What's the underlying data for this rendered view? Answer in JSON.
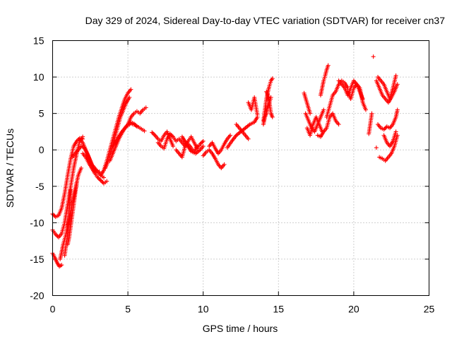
{
  "chart_data": {
    "type": "scatter",
    "title": "Day 329 of 2024, Sidereal Day-to-day VTEC variation (SDTVAR) for receiver cn37",
    "xlabel": "GPS time / hours",
    "ylabel": "SDTVAR / TECUs",
    "xlim": [
      0,
      25
    ],
    "ylim": [
      -20,
      15
    ],
    "xticks": [
      0,
      5,
      10,
      15,
      20,
      25
    ],
    "yticks": [
      -20,
      -15,
      -10,
      -5,
      0,
      5,
      10,
      15
    ],
    "grid": true,
    "marker": "plus",
    "color": "#ff0000",
    "series": [
      {
        "name": "SDTVAR",
        "tracks": [
          {
            "x": [
              0.0,
              0.15,
              0.3,
              0.45,
              0.6
            ],
            "y": [
              -14.2,
              -14.8,
              -15.5,
              -16.0,
              -15.8
            ]
          },
          {
            "x": [
              0.0,
              0.2,
              0.4,
              0.6,
              0.8,
              1.0,
              1.2,
              1.4,
              1.6,
              1.8,
              2.0
            ],
            "y": [
              -11.0,
              -11.6,
              -12.0,
              -11.5,
              -10.0,
              -7.5,
              -5.0,
              -2.5,
              -0.5,
              1.2,
              1.8
            ]
          },
          {
            "x": [
              0.0,
              0.2,
              0.4,
              0.6,
              0.8,
              1.0,
              1.2,
              1.4,
              1.6,
              1.8,
              2.0
            ],
            "y": [
              -8.8,
              -9.2,
              -9.0,
              -8.0,
              -6.0,
              -3.5,
              -1.2,
              0.5,
              1.2,
              1.6,
              1.5
            ]
          },
          {
            "x": [
              0.5,
              0.7,
              0.9,
              1.1,
              1.3,
              1.5,
              1.7,
              1.9
            ],
            "y": [
              -15.0,
              -13.0,
              -11.5,
              -9.5,
              -7.5,
              -5.5,
              -3.5,
              -2.5
            ]
          },
          {
            "x": [
              0.8,
              0.9,
              1.0,
              1.05,
              1.1,
              1.15,
              1.2
            ],
            "y": [
              -14.5,
              -13.0,
              -11.5,
              -10.0,
              -8.5,
              -7.0,
              -5.5
            ]
          },
          {
            "x": [
              1.0,
              1.1,
              1.2,
              1.3,
              1.4,
              1.5,
              1.6
            ],
            "y": [
              -13.0,
              -12.0,
              -10.5,
              -9.0,
              -7.5,
              -6.0,
              -4.5
            ]
          },
          {
            "x": [
              1.3,
              1.5,
              1.7,
              1.9,
              2.1,
              2.3,
              2.5,
              2.7,
              2.9,
              3.1
            ],
            "y": [
              -1.0,
              -0.5,
              0.0,
              0.5,
              0.3,
              -0.5,
              -1.5,
              -2.5,
              -3.0,
              -3.0
            ]
          },
          {
            "x": [
              1.8,
              2.0,
              2.2,
              2.4,
              2.6,
              2.8,
              3.0,
              3.2,
              3.4
            ],
            "y": [
              1.5,
              1.0,
              0.0,
              -1.0,
              -2.0,
              -2.5,
              -3.0,
              -3.5,
              -3.8
            ]
          },
          {
            "x": [
              2.0,
              2.2,
              2.4,
              2.6,
              2.8,
              3.0,
              3.2,
              3.4,
              3.6
            ],
            "y": [
              -0.5,
              -1.0,
              -1.8,
              -2.5,
              -3.2,
              -3.8,
              -4.2,
              -4.6,
              -4.3
            ]
          },
          {
            "x": [
              3.2,
              3.4,
              3.6,
              3.8,
              4.0,
              4.2,
              4.4,
              4.6,
              4.8,
              5.0,
              5.2
            ],
            "y": [
              -3.5,
              -2.8,
              -1.5,
              0.0,
              1.5,
              3.0,
              4.5,
              5.8,
              7.0,
              7.8,
              8.3
            ]
          },
          {
            "x": [
              3.5,
              3.7,
              3.9,
              4.1,
              4.3,
              4.5,
              4.7,
              4.9,
              5.1
            ],
            "y": [
              -2.5,
              -1.5,
              0.0,
              1.5,
              3.0,
              4.5,
              5.5,
              6.5,
              7.2
            ]
          },
          {
            "x": [
              3.8,
              4.0,
              4.2,
              4.4,
              4.6,
              4.8,
              5.0,
              5.2,
              5.4,
              5.6
            ],
            "y": [
              -1.5,
              -0.5,
              0.5,
              1.5,
              2.3,
              3.0,
              3.5,
              3.8,
              3.6,
              3.2
            ]
          },
          {
            "x": [
              4.0,
              4.3,
              4.6,
              4.9,
              5.2,
              5.5,
              5.8,
              6.1
            ],
            "y": [
              0.5,
              1.5,
              2.5,
              3.2,
              3.6,
              3.4,
              3.0,
              2.6
            ]
          },
          {
            "x": [
              5.0,
              5.2,
              5.4,
              5.6,
              5.8,
              6.0,
              6.2
            ],
            "y": [
              3.5,
              4.5,
              5.0,
              5.3,
              5.0,
              5.5,
              5.8
            ]
          },
          {
            "x": [
              6.6,
              6.8,
              7.0,
              7.2,
              7.4,
              7.6,
              7.8,
              8.0
            ],
            "y": [
              2.4,
              2.0,
              1.5,
              1.2,
              2.0,
              2.5,
              1.5,
              0.5
            ]
          },
          {
            "x": [
              7.0,
              7.2,
              7.4,
              7.6,
              7.8,
              8.0,
              8.2,
              8.4,
              8.6,
              8.8,
              9.0,
              9.2,
              9.4,
              9.6
            ],
            "y": [
              1.0,
              0.5,
              0.2,
              1.5,
              2.2,
              1.8,
              1.2,
              1.5,
              1.0,
              0.5,
              0.8,
              0.3,
              -0.3,
              0.5
            ]
          },
          {
            "x": [
              8.2,
              8.4,
              8.6,
              8.8,
              9.0,
              9.2,
              9.4,
              9.6,
              9.8,
              10.0
            ],
            "y": [
              0.0,
              -0.5,
              -1.0,
              0.5,
              1.2,
              1.8,
              1.0,
              0.2,
              0.8,
              1.2
            ]
          },
          {
            "x": [
              8.6,
              8.9,
              9.2,
              9.5,
              9.8,
              10.0
            ],
            "y": [
              1.8,
              0.8,
              -0.2,
              -0.5,
              0.0,
              0.5
            ]
          },
          {
            "x": [
              10.0,
              10.2,
              10.4,
              10.6,
              10.8,
              11.0,
              11.2,
              11.4
            ],
            "y": [
              -0.8,
              -0.3,
              0.0,
              -0.5,
              -1.2,
              -2.0,
              -2.5,
              -2.0
            ]
          },
          {
            "x": [
              10.4,
              10.6,
              10.8,
              11.0,
              11.2,
              11.4,
              11.6,
              11.8
            ],
            "y": [
              0.5,
              1.0,
              0.2,
              -0.5,
              0.0,
              0.8,
              1.5,
              2.0
            ]
          },
          {
            "x": [
              11.6,
              11.9,
              12.2,
              12.5,
              12.8,
              13.1,
              13.4,
              13.6
            ],
            "y": [
              0.3,
              1.2,
              2.0,
              2.5,
              3.0,
              3.5,
              3.8,
              4.5
            ]
          },
          {
            "x": [
              12.2,
              12.4,
              12.6,
              12.8,
              13.0
            ],
            "y": [
              3.5,
              3.0,
              2.5,
              2.0,
              1.5
            ]
          },
          {
            "x": [
              13.0,
              13.2,
              13.4,
              13.6
            ],
            "y": [
              6.5,
              5.5,
              7.2,
              4.8
            ]
          },
          {
            "x": [
              14.0,
              14.1,
              14.2,
              14.3,
              14.4,
              14.5,
              14.6
            ],
            "y": [
              4.0,
              5.5,
              7.0,
              8.0,
              8.8,
              9.5,
              9.8
            ]
          },
          {
            "x": [
              14.0,
              14.1,
              14.2,
              14.3,
              14.4,
              14.5
            ],
            "y": [
              3.5,
              4.5,
              5.0,
              6.0,
              6.5,
              7.2
            ]
          },
          {
            "x": [
              14.2,
              14.3,
              14.4,
              14.5,
              14.6
            ],
            "y": [
              8.0,
              7.5,
              6.5,
              5.0,
              4.5
            ]
          },
          {
            "x": [
              16.8,
              17.0,
              17.2,
              17.4,
              17.6,
              17.8,
              18.0
            ],
            "y": [
              5.0,
              4.0,
              3.0,
              2.5,
              3.5,
              4.5,
              5.5
            ]
          },
          {
            "x": [
              16.9,
              17.1,
              17.3,
              17.5,
              17.7,
              17.9
            ],
            "y": [
              3.0,
              2.0,
              3.5,
              4.5,
              3.5,
              2.5
            ]
          },
          {
            "x": [
              17.8,
              17.9,
              18.0,
              18.1,
              18.2,
              18.3
            ],
            "y": [
              7.5,
              8.5,
              9.5,
              10.2,
              11.0,
              11.6
            ]
          },
          {
            "x": [
              17.6,
              17.8,
              18.0,
              18.2,
              18.4,
              18.6,
              18.8,
              19.0
            ],
            "y": [
              2.0,
              1.8,
              2.5,
              3.0,
              4.5,
              5.0,
              4.0,
              3.5
            ]
          },
          {
            "x": [
              18.2,
              18.4,
              18.6,
              18.8,
              19.0,
              19.2,
              19.4,
              19.6
            ],
            "y": [
              4.5,
              6.0,
              7.5,
              8.0,
              9.0,
              9.5,
              9.2,
              8.5
            ]
          },
          {
            "x": [
              19.0,
              19.2,
              19.4,
              19.6,
              19.8,
              20.0,
              20.2,
              20.4,
              20.6
            ],
            "y": [
              9.5,
              9.0,
              8.5,
              7.5,
              8.5,
              9.5,
              9.0,
              8.0,
              7.0
            ]
          },
          {
            "x": [
              19.6,
              19.8,
              20.0,
              20.2,
              20.4,
              20.6,
              20.8
            ],
            "y": [
              8.0,
              7.0,
              8.5,
              9.0,
              8.5,
              6.5,
              5.5
            ]
          },
          {
            "x": [
              16.7,
              17.1,
              21.0,
              21.2,
              21.3,
              21.5
            ],
            "y": [
              7.8,
              5.0,
              2.2,
              5.0,
              12.8,
              0.3
            ]
          },
          {
            "x": [
              21.5,
              21.7,
              21.9,
              22.1,
              22.3,
              22.5,
              22.7,
              22.9
            ],
            "y": [
              9.5,
              8.5,
              7.5,
              7.0,
              6.5,
              7.2,
              8.0,
              9.0
            ]
          },
          {
            "x": [
              21.6,
              21.8,
              22.0,
              22.2,
              22.4,
              22.6,
              22.8
            ],
            "y": [
              10.0,
              9.5,
              9.0,
              8.0,
              7.0,
              8.5,
              10.2
            ]
          },
          {
            "x": [
              21.6,
              21.8,
              22.0,
              22.2,
              22.4,
              22.6,
              22.8,
              22.9
            ],
            "y": [
              3.5,
              3.0,
              2.8,
              3.2,
              3.0,
              3.5,
              4.5,
              5.5
            ]
          },
          {
            "x": [
              21.7,
              21.9,
              22.1,
              22.3,
              22.5,
              22.7,
              22.9
            ],
            "y": [
              -1.0,
              -1.2,
              -1.5,
              -1.0,
              -0.5,
              0.5,
              2.0
            ]
          },
          {
            "x": [
              22.0,
              22.2,
              22.4,
              22.6,
              22.8
            ],
            "y": [
              2.0,
              1.0,
              0.5,
              1.2,
              2.5
            ]
          }
        ]
      }
    ]
  }
}
